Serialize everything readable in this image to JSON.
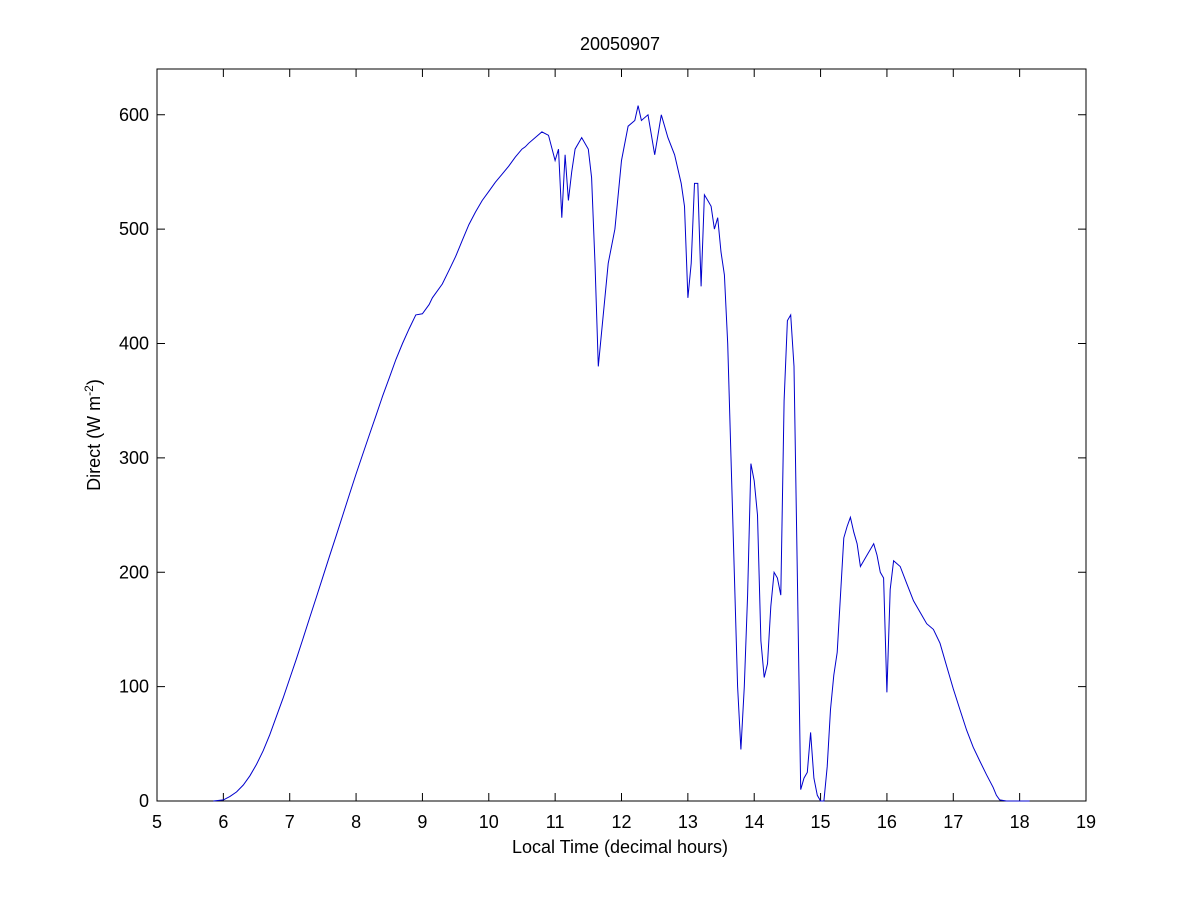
{
  "chart_data": {
    "type": "line",
    "title": "20050907",
    "xlabel": "Local Time (decimal hours)",
    "ylabel_main": "Direct (W m",
    "ylabel_sup": "-2",
    "ylabel_close": ")",
    "xlim": [
      5,
      19
    ],
    "ylim": [
      0,
      640
    ],
    "xticks": [
      5,
      6,
      7,
      8,
      9,
      10,
      11,
      12,
      13,
      14,
      15,
      16,
      17,
      18,
      19
    ],
    "yticks": [
      0,
      100,
      200,
      300,
      400,
      500,
      600
    ],
    "grid": false,
    "line_color": "#0000cc",
    "series": [
      {
        "x": [
          5.85,
          6.0,
          6.1,
          6.2,
          6.3,
          6.4,
          6.5,
          6.6,
          6.7,
          6.8,
          6.9,
          7.0,
          7.1,
          7.2,
          7.3,
          7.4,
          7.5,
          7.6,
          7.7,
          7.8,
          7.9,
          8.0,
          8.1,
          8.2,
          8.3,
          8.4,
          8.5,
          8.6,
          8.7,
          8.8,
          8.9,
          9.0,
          9.1,
          9.15,
          9.3,
          9.4,
          9.5,
          9.6,
          9.7,
          9.8,
          9.9,
          10.0,
          10.1,
          10.2,
          10.3,
          10.4,
          10.5,
          10.55,
          10.6,
          10.7,
          10.8,
          10.9,
          11.0,
          11.05,
          11.1,
          11.15,
          11.2,
          11.25,
          11.3,
          11.4,
          11.5,
          11.55,
          11.6,
          11.65,
          11.7,
          11.75,
          11.8,
          11.9,
          12.0,
          12.1,
          12.2,
          12.25,
          12.3,
          12.4,
          12.5,
          12.6,
          12.7,
          12.8,
          12.9,
          12.95,
          13.0,
          13.05,
          13.1,
          13.15,
          13.2,
          13.25,
          13.3,
          13.35,
          13.4,
          13.45,
          13.5,
          13.55,
          13.6,
          13.65,
          13.7,
          13.75,
          13.8,
          13.85,
          13.9,
          13.95,
          14.0,
          14.05,
          14.1,
          14.15,
          14.2,
          14.25,
          14.3,
          14.35,
          14.4,
          14.45,
          14.5,
          14.55,
          14.6,
          14.65,
          14.7,
          14.75,
          14.8,
          14.85,
          14.9,
          14.95,
          15.0,
          15.05,
          15.1,
          15.15,
          15.2,
          15.25,
          15.3,
          15.35,
          15.4,
          15.45,
          15.5,
          15.55,
          15.6,
          15.7,
          15.8,
          15.85,
          15.9,
          15.95,
          16.0,
          16.05,
          16.1,
          16.2,
          16.3,
          16.4,
          16.5,
          16.6,
          16.7,
          16.8,
          16.9,
          17.0,
          17.1,
          17.2,
          17.3,
          17.4,
          17.5,
          17.6,
          17.65,
          17.7,
          17.8,
          18.0,
          18.15
        ],
        "y": [
          0,
          1,
          4,
          8,
          14,
          22,
          32,
          44,
          58,
          74,
          90,
          107,
          124,
          142,
          160,
          178,
          196,
          214,
          232,
          250,
          268,
          286,
          303,
          320,
          337,
          354,
          370,
          386,
          400,
          413,
          425,
          426,
          434,
          440,
          452,
          464,
          476,
          490,
          504,
          515,
          525,
          533,
          541,
          548,
          555,
          563,
          570,
          572,
          575,
          580,
          585,
          582,
          560,
          570,
          510,
          565,
          525,
          550,
          570,
          580,
          570,
          545,
          470,
          380,
          410,
          440,
          470,
          500,
          560,
          590,
          595,
          608,
          595,
          600,
          565,
          600,
          580,
          565,
          540,
          520,
          440,
          470,
          540,
          540,
          450,
          530,
          525,
          520,
          500,
          510,
          480,
          460,
          400,
          300,
          200,
          100,
          45,
          100,
          180,
          295,
          280,
          250,
          140,
          108,
          120,
          170,
          200,
          195,
          180,
          350,
          420,
          425,
          380,
          200,
          10,
          20,
          25,
          60,
          20,
          5,
          0,
          0,
          30,
          80,
          110,
          130,
          180,
          230,
          240,
          248,
          235,
          225,
          205,
          215,
          225,
          215,
          200,
          195,
          95,
          185,
          210,
          205,
          190,
          175,
          165,
          155,
          150,
          138,
          118,
          98,
          80,
          62,
          47,
          35,
          23,
          12,
          5,
          1,
          0,
          0,
          0
        ]
      }
    ]
  }
}
